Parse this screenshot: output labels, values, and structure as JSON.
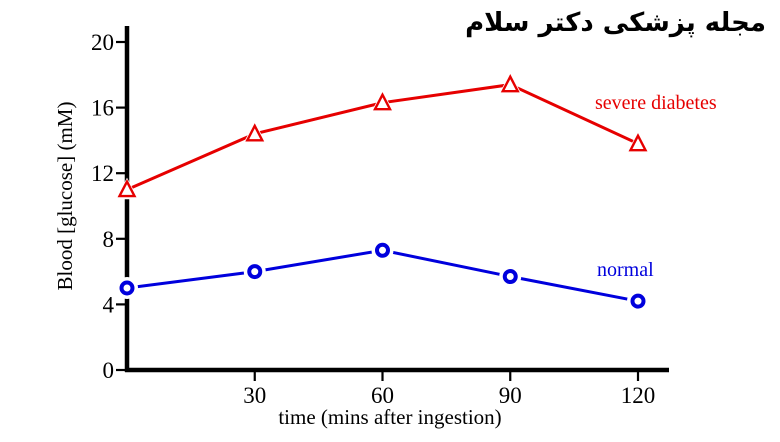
{
  "header": {
    "title": "مجله پزشکی دکتر سلام"
  },
  "chart_data": {
    "type": "line",
    "x": [
      0,
      30,
      60,
      90,
      120
    ],
    "series": [
      {
        "name": "severe diabetes",
        "values": [
          11.0,
          14.4,
          16.3,
          17.4,
          13.8
        ],
        "color": "#e60000",
        "marker": "triangle-open"
      },
      {
        "name": "normal",
        "values": [
          5.0,
          6.0,
          7.3,
          5.7,
          4.2
        ],
        "color": "#0000dd",
        "marker": "circle-open"
      }
    ],
    "title": "",
    "xlabel": "time (mins after ingestion)",
    "ylabel": "Blood [glucose] (mM)",
    "xlim": [
      0,
      127
    ],
    "ylim": [
      0,
      20
    ],
    "x_ticks": [
      30,
      60,
      90,
      120
    ],
    "y_ticks": [
      0,
      4,
      8,
      12,
      16,
      20
    ],
    "grid": false,
    "legend": "inline-labels",
    "axis_color": "#000000"
  }
}
